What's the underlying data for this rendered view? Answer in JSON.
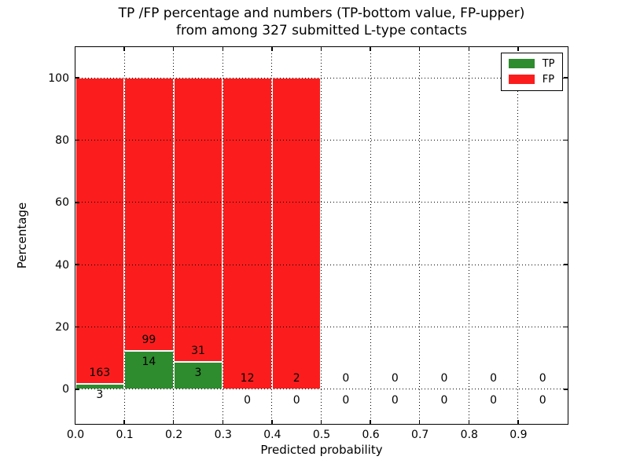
{
  "title": {
    "line1": "TP /FP percentage and numbers (TP-bottom value, FP-upper)",
    "line2": "from among 327 submitted L-type contacts"
  },
  "axes": {
    "xlabel": "Predicted probability",
    "ylabel": "Percentage"
  },
  "legend": {
    "items": [
      {
        "label": "TP",
        "color": "#2e8b2e"
      },
      {
        "label": "FP",
        "color": "#fb1d1d"
      }
    ]
  },
  "chart_data": {
    "type": "bar",
    "stacked": true,
    "title": "TP /FP percentage and numbers (TP-bottom value, FP-upper) from among 327 submitted L-type contacts",
    "xlabel": "Predicted probability",
    "ylabel": "Percentage",
    "total_submitted": 327,
    "colors": {
      "tp": "#2e8b2e",
      "fp": "#fb1d1d"
    },
    "grid": "dotted",
    "legend_position": "upper right",
    "xlim": [
      0,
      1.0
    ],
    "ylim": [
      -11,
      110
    ],
    "yticks": [
      0,
      20,
      40,
      60,
      80,
      100
    ],
    "xticks": [
      "0.0",
      "0.1",
      "0.2",
      "0.3",
      "0.4",
      "0.5",
      "0.6",
      "0.7",
      "0.8",
      "0.9"
    ],
    "series_note": "each bin stacked to 100% when it has contacts; TP on bottom, FP on top",
    "bins": [
      {
        "range": [
          0.0,
          0.1
        ],
        "tp": 3,
        "fp": 163
      },
      {
        "range": [
          0.1,
          0.2
        ],
        "tp": 14,
        "fp": 99
      },
      {
        "range": [
          0.2,
          0.3
        ],
        "tp": 3,
        "fp": 31
      },
      {
        "range": [
          0.3,
          0.4
        ],
        "tp": 0,
        "fp": 12
      },
      {
        "range": [
          0.4,
          0.5
        ],
        "tp": 0,
        "fp": 2
      },
      {
        "range": [
          0.5,
          0.6
        ],
        "tp": 0,
        "fp": 0
      },
      {
        "range": [
          0.6,
          0.7
        ],
        "tp": 0,
        "fp": 0
      },
      {
        "range": [
          0.7,
          0.8
        ],
        "tp": 0,
        "fp": 0
      },
      {
        "range": [
          0.8,
          0.9
        ],
        "tp": 0,
        "fp": 0
      },
      {
        "range": [
          0.9,
          1.0
        ],
        "tp": 0,
        "fp": 0
      }
    ]
  }
}
